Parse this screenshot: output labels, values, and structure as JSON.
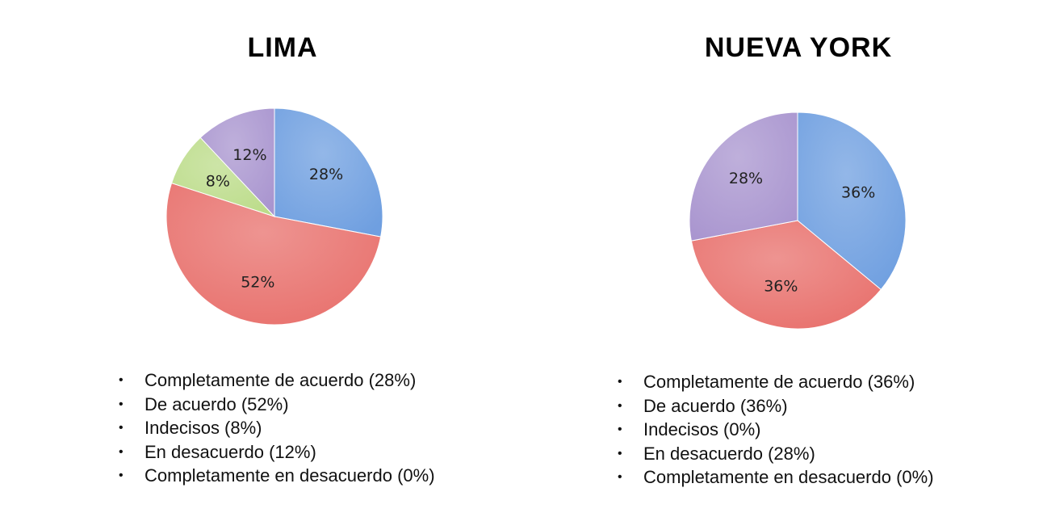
{
  "chart_data": [
    {
      "type": "pie",
      "title": "LIMA",
      "categories": [
        "Completamente de acuerdo",
        "De acuerdo",
        "Indecisos",
        "En desacuerdo",
        "Completamente en desacuerdo"
      ],
      "values": [
        28,
        52,
        8,
        12,
        0
      ],
      "slice_labels": [
        "28%",
        "52%",
        "8%",
        "12%",
        ""
      ],
      "colors": [
        "#6f9fe0",
        "#e8706c",
        "#bcdc8a",
        "#a995cf",
        "#f2b266"
      ],
      "legend": [
        "Completamente de acuerdo (28%)",
        "De acuerdo (52%)",
        "Indecisos (8%)",
        "En desacuerdo (12%)",
        "Completamente en desacuerdo (0%)"
      ]
    },
    {
      "type": "pie",
      "title": "NUEVA YORK",
      "categories": [
        "Completamente de acuerdo",
        "De acuerdo",
        "Indecisos",
        "En desacuerdo",
        "Completamente en desacuerdo"
      ],
      "values": [
        36,
        36,
        0,
        28,
        0
      ],
      "slice_labels": [
        "36%",
        "36%",
        "",
        "28%",
        ""
      ],
      "colors": [
        "#6f9fe0",
        "#e8706c",
        "#bcdc8a",
        "#a995cf",
        "#f2b266"
      ],
      "legend": [
        "Completamente de acuerdo (36%)",
        "De acuerdo (36%)",
        "Indecisos (0%)",
        "En desacuerdo (28%)",
        "Completamente en desacuerdo (0%)"
      ]
    }
  ],
  "legend_bullet": "•"
}
